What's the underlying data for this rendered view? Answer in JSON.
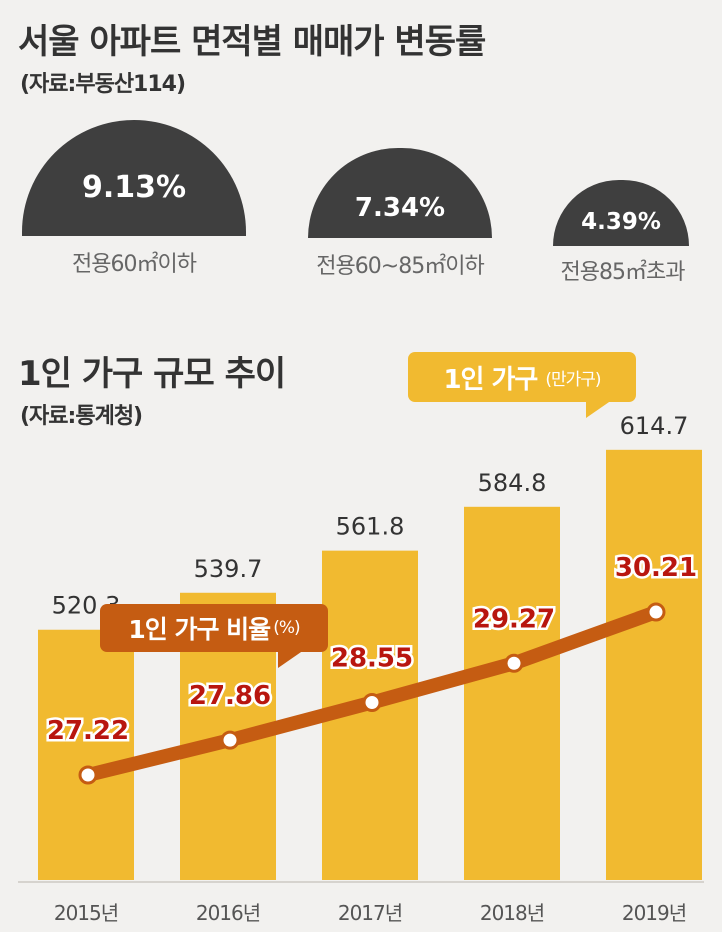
{
  "section1": {
    "title": "서울 아파트 면적별 매매가 변동률",
    "source": "(자료:부동산114)",
    "items": [
      {
        "value": "9.13%",
        "label": "전용60㎡이하"
      },
      {
        "value": "7.34%",
        "label": "전용60~85㎡이하"
      },
      {
        "value": "4.39%",
        "label": "전용85㎡초과"
      }
    ]
  },
  "section2": {
    "title": "1인 가구 규모 추이",
    "source": "(자료:통계청)",
    "bar_legend": "1인 가구",
    "bar_unit": "(만가구)",
    "line_legend": "1인 가구 비율",
    "line_unit": "(%)"
  },
  "colors": {
    "dome": "#3f3f3f",
    "bar": "#f1ba30",
    "line": "#c55c12",
    "line_label": "#b8160f"
  },
  "chart_data": [
    {
      "type": "bar",
      "categories": [
        "전용60㎡이하",
        "전용60~85㎡이하",
        "전용85㎡초과"
      ],
      "values": [
        9.13,
        7.34,
        4.39
      ]
    },
    {
      "type": "bar",
      "categories": [
        "2015년",
        "2016년",
        "2017년",
        "2018년",
        "2019년"
      ],
      "series": [
        {
          "name": "1인 가구 (만가구)",
          "type": "bar",
          "values": [
            520.3,
            539.7,
            561.8,
            584.8,
            614.7
          ]
        },
        {
          "name": "1인 가구 비율(%)",
          "type": "line",
          "values": [
            27.22,
            27.86,
            28.55,
            29.27,
            30.21
          ]
        }
      ]
    }
  ]
}
